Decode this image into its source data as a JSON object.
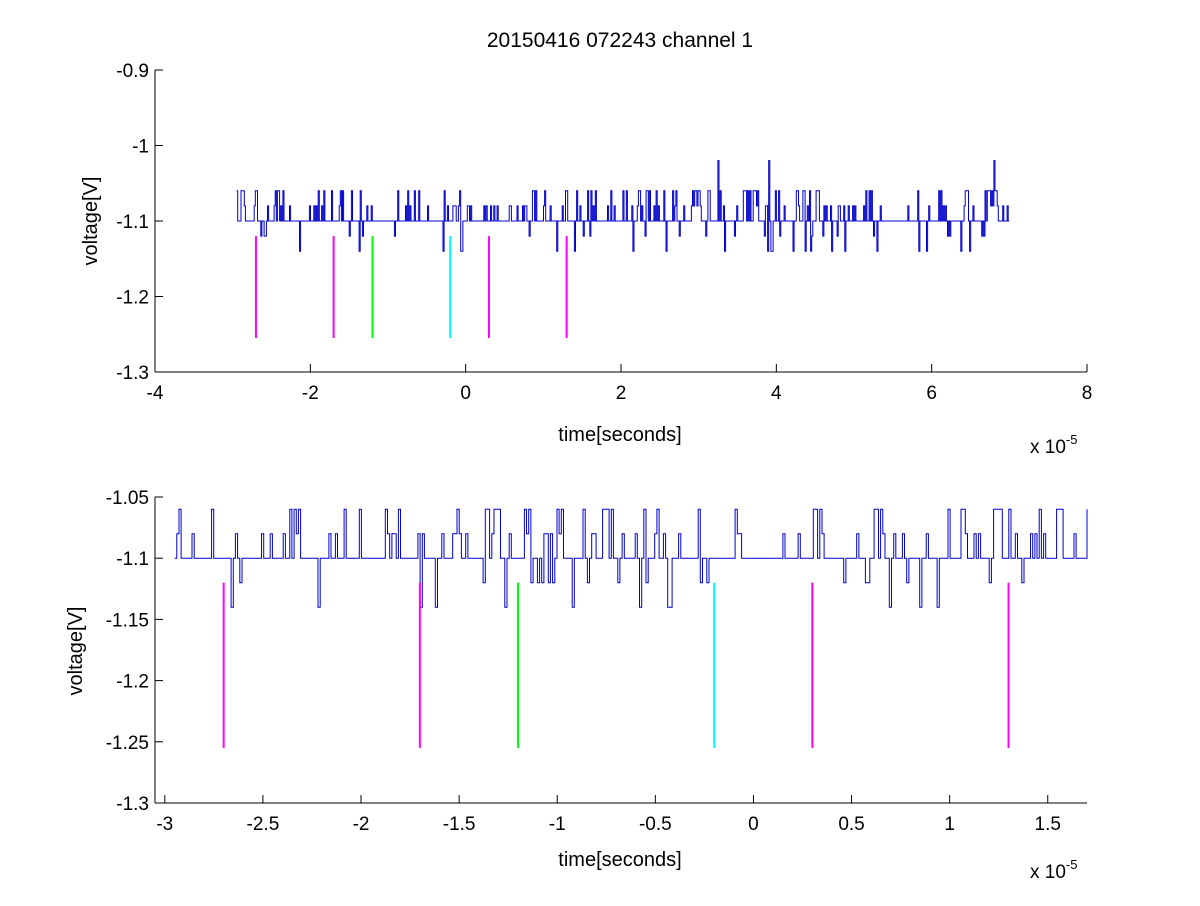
{
  "chart_data": [
    {
      "type": "line",
      "title": "20150416 072243 channel 1",
      "xlabel": "time[seconds]",
      "ylabel": "voltage[V]",
      "x_multiplier_label": "x 10",
      "x_multiplier_exponent": "-5",
      "xlim": [
        -4,
        8
      ],
      "ylim": [
        -1.3,
        -0.9
      ],
      "xticks": [
        "-4",
        "-2",
        "0",
        "2",
        "4",
        "6",
        "8"
      ],
      "yticks": [
        "-0.9",
        "-1",
        "-1.1",
        "-1.2",
        "-1.3"
      ],
      "grid": false,
      "series": [
        {
          "color": "#0000cc",
          "x_range": [
            -2.95,
            7.0
          ],
          "levels": [
            -1.06,
            -1.08,
            -1.1,
            -1.12,
            -1.14
          ],
          "spikes": [
            {
              "x": 3.25,
              "y": -1.02
            },
            {
              "x": 3.9,
              "y": -1.02
            },
            {
              "x": 6.8,
              "y": -1.02
            }
          ]
        }
      ],
      "markers": [
        {
          "x": -2.7,
          "color": "#ff00ff",
          "y_top": -1.12,
          "y_bottom": -1.255
        },
        {
          "x": -1.7,
          "color": "#ff00ff",
          "y_top": -1.12,
          "y_bottom": -1.255
        },
        {
          "x": -1.2,
          "color": "#00ff00",
          "y_top": -1.12,
          "y_bottom": -1.255
        },
        {
          "x": -0.2,
          "color": "#00ffff",
          "y_top": -1.12,
          "y_bottom": -1.255
        },
        {
          "x": 0.3,
          "color": "#ff00ff",
          "y_top": -1.12,
          "y_bottom": -1.255
        },
        {
          "x": 1.3,
          "color": "#ff00ff",
          "y_top": -1.12,
          "y_bottom": -1.255
        }
      ]
    },
    {
      "type": "line",
      "title": "",
      "xlabel": "time[seconds]",
      "ylabel": "voltage[V]",
      "x_multiplier_label": "x 10",
      "x_multiplier_exponent": "-5",
      "xlim": [
        -3.05,
        1.7
      ],
      "ylim": [
        -1.3,
        -1.05
      ],
      "xticks": [
        "-3",
        "-2.5",
        "-2",
        "-1.5",
        "-1",
        "-0.5",
        "0",
        "0.5",
        "1",
        "1.5"
      ],
      "yticks": [
        "-1.05",
        "-1.1",
        "-1.15",
        "-1.2",
        "-1.25",
        "-1.3"
      ],
      "grid": false,
      "series": [
        {
          "color": "#0000cc",
          "x_range": [
            -2.95,
            1.7
          ],
          "levels": [
            -1.06,
            -1.08,
            -1.1,
            -1.12,
            -1.14
          ]
        }
      ],
      "markers": [
        {
          "x": -2.7,
          "color": "#ff00ff",
          "y_top": -1.12,
          "y_bottom": -1.255
        },
        {
          "x": -1.7,
          "color": "#ff00ff",
          "y_top": -1.12,
          "y_bottom": -1.255
        },
        {
          "x": -1.2,
          "color": "#00ff00",
          "y_top": -1.12,
          "y_bottom": -1.255
        },
        {
          "x": -0.2,
          "color": "#00ffff",
          "y_top": -1.12,
          "y_bottom": -1.255
        },
        {
          "x": 0.3,
          "color": "#ff00ff",
          "y_top": -1.12,
          "y_bottom": -1.255
        },
        {
          "x": 1.3,
          "color": "#ff00ff",
          "y_top": -1.12,
          "y_bottom": -1.255
        }
      ]
    }
  ]
}
